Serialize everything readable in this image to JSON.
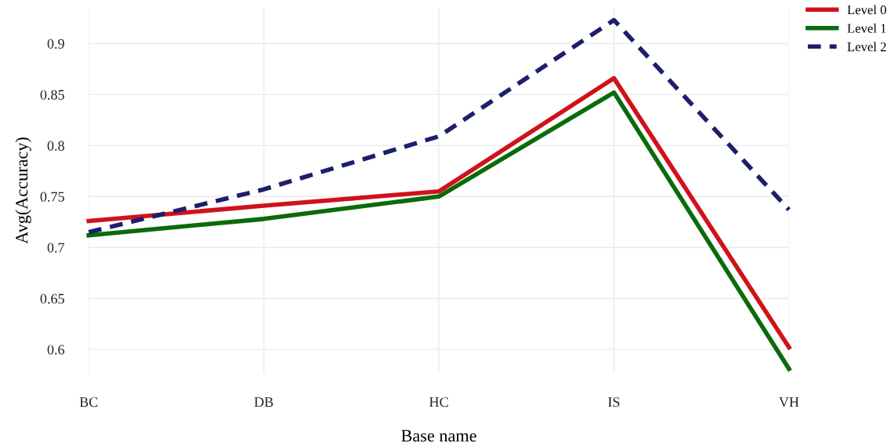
{
  "chart_data": {
    "type": "line",
    "xlabel": "Base name",
    "ylabel": "Avg(Accuracy)",
    "categories": [
      "BC",
      "DB",
      "HC",
      "IS",
      "VH"
    ],
    "series": [
      {
        "name": "Level 0",
        "color": "#d0121b",
        "line_style": "solid",
        "values": [
          0.726,
          0.741,
          0.755,
          0.866,
          0.602
        ]
      },
      {
        "name": "Level 1",
        "color": "#0a6b0a",
        "line_style": "solid",
        "values": [
          0.712,
          0.728,
          0.75,
          0.852,
          0.581
        ]
      },
      {
        "name": "Level 2",
        "color": "#1c1f6b",
        "line_style": "dashed",
        "values": [
          0.715,
          0.757,
          0.809,
          0.923,
          0.737
        ]
      }
    ],
    "ylim": [
      0.577,
      0.935
    ],
    "yticks": [
      0.6,
      0.65,
      0.7,
      0.75,
      0.8,
      0.85,
      0.9
    ],
    "grid": true,
    "legend": "top right",
    "marker": "none"
  }
}
